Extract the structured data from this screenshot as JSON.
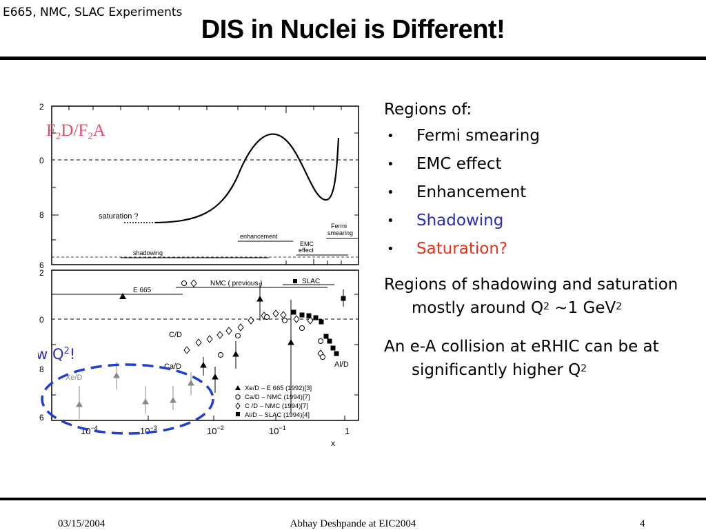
{
  "header": {
    "corner_label": "E665, NMC, SLAC Experiments",
    "title": "DIS in Nuclei is Different!"
  },
  "figure": {
    "ratio_label_main": "F",
    "ratio_sub1": "2",
    "ratio_mid": "D/F",
    "ratio_sub2": "2",
    "ratio_end": "A",
    "low_q_text": "Low Q",
    "low_q_sup": "2",
    "low_q_end": "!",
    "top_panel": {
      "ytick_labels": [
        "2",
        "0",
        "8",
        "6"
      ],
      "annotations": {
        "saturation": "saturation ?",
        "enhancement": "enhancement",
        "fermi_1": "Fermi",
        "fermi_2": "smearing",
        "emc_1": "EMC",
        "emc_2": "effect",
        "shadowing": "shadowing"
      }
    },
    "bottom_panel": {
      "ytick_labels": [
        "2",
        "0",
        "8",
        "6"
      ],
      "legend_top": {
        "e665": "E 665",
        "nmc": "NMC  ( previous )",
        "slac": "SLAC"
      },
      "target_labels": {
        "cd": "C/D",
        "cad": "Ca/D",
        "xed": "Xe/D",
        "ald": "Al/D"
      },
      "legend_bottom": [
        "Xe/D – E 665 (1992)[3]",
        "Ca/D – NMC  (1994)[7]",
        "C /D – NMC  (1994)[7]",
        "Al/D  – SLAC (1994)[4]"
      ],
      "xtick_base": "10",
      "xtick_exps": [
        "−4",
        "−3",
        "−2",
        "−1"
      ],
      "xtick_one": "1",
      "xlabel": "x"
    }
  },
  "right": {
    "regions_heading": "Regions of:",
    "bullet_glyph": "•",
    "bullets": [
      {
        "text": "Fermi smearing",
        "color": "#000000"
      },
      {
        "text": "EMC effect",
        "color": "#000000"
      },
      {
        "text": "Enhancement",
        "color": "#000000"
      },
      {
        "text": "Shadowing",
        "color": "#2b2bb8"
      },
      {
        "text": "Saturation?",
        "color": "#e8321a"
      }
    ],
    "para1": {
      "text": "Regions of shadowing and saturation mostly around Q",
      "sup1": "2",
      "mid": " ~1 GeV",
      "sup2": "2"
    },
    "para2": {
      "text": "An e-A collision at eRHIC can be at significantly higher Q",
      "sup": "2"
    }
  },
  "footer": {
    "date": "03/15/2004",
    "center": "Abhay Deshpande at EIC2004",
    "page": "4"
  },
  "colors": {
    "ratio_label": "#e0506a",
    "low_q": "#2b2bb8",
    "ellipse": "#1f3fd1"
  }
}
